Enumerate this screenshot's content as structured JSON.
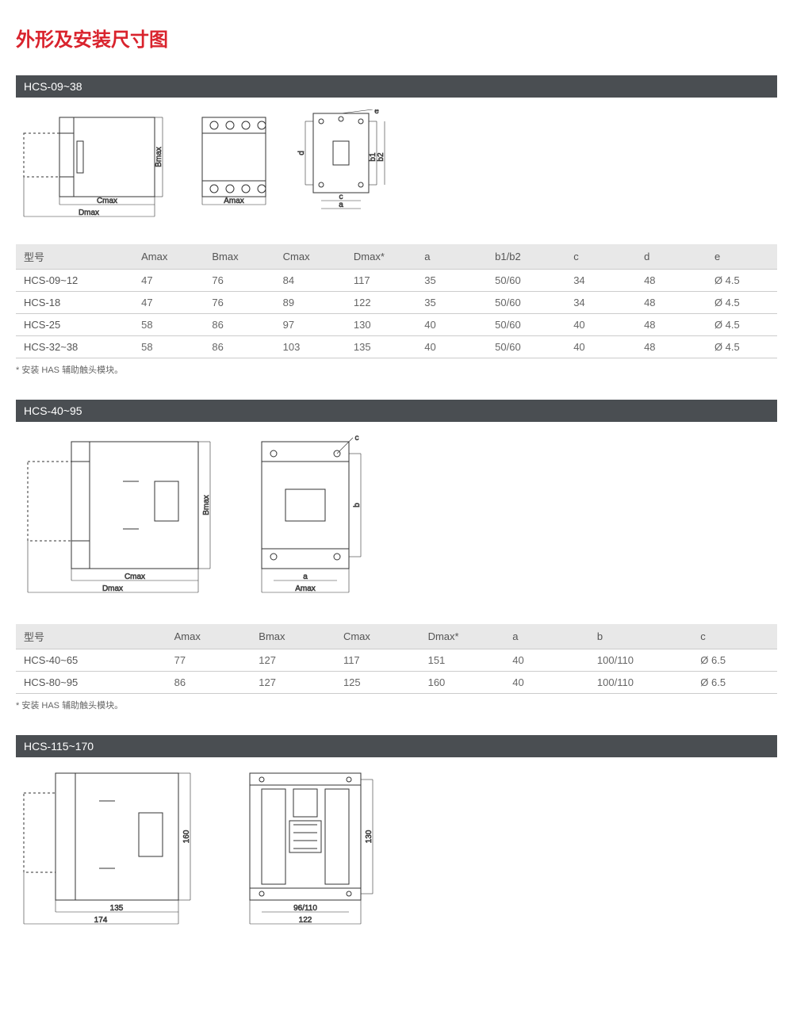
{
  "title": "外形及安装尺寸图",
  "colors": {
    "title": "#d9232d",
    "header_bg": "#4a4e52",
    "header_fg": "#ffffff",
    "thead_bg": "#e8e8e8",
    "text": "#666666",
    "border": "#cccccc",
    "diagram_stroke": "#333333"
  },
  "sections": [
    {
      "header": "HCS-09~38",
      "diagrams": {
        "view1": {
          "labels": {
            "cmax": "Cmax",
            "dmax": "Dmax",
            "bmax": "Bmax"
          }
        },
        "view2": {
          "labels": {
            "amax": "Amax"
          }
        },
        "view3": {
          "labels": {
            "a": "a",
            "c": "c",
            "d": "d",
            "b1": "b1",
            "b2": "b2",
            "e": "e"
          }
        }
      },
      "table": {
        "columns": [
          "型号",
          "Amax",
          "Bmax",
          "Cmax",
          "Dmax*",
          "a",
          "b1/b2",
          "c",
          "d",
          "e"
        ],
        "rows": [
          [
            "HCS-09~12",
            "47",
            "76",
            "84",
            "117",
            "35",
            "50/60",
            "34",
            "48",
            "Ø 4.5"
          ],
          [
            "HCS-18",
            "47",
            "76",
            "89",
            "122",
            "35",
            "50/60",
            "34",
            "48",
            "Ø 4.5"
          ],
          [
            "HCS-25",
            "58",
            "86",
            "97",
            "130",
            "40",
            "50/60",
            "40",
            "48",
            "Ø 4.5"
          ],
          [
            "HCS-32~38",
            "58",
            "86",
            "103",
            "135",
            "40",
            "50/60",
            "40",
            "48",
            "Ø 4.5"
          ]
        ],
        "col_widths": [
          "150px",
          "90px",
          "90px",
          "90px",
          "90px",
          "90px",
          "100px",
          "90px",
          "90px",
          "90px"
        ]
      },
      "footnote": "* 安装 HAS 辅助触头模块。"
    },
    {
      "header": "HCS-40~95",
      "diagrams": {
        "view1": {
          "labels": {
            "cmax": "Cmax",
            "dmax": "Dmax",
            "bmax": "Bmax"
          }
        },
        "view2": {
          "labels": {
            "amax": "Amax",
            "a": "a",
            "b": "b",
            "c": "c"
          }
        }
      },
      "table": {
        "columns": [
          "型号",
          "Amax",
          "Bmax",
          "Cmax",
          "Dmax*",
          "a",
          "b",
          "c"
        ],
        "rows": [
          [
            "HCS-40~65",
            "77",
            "127",
            "117",
            "151",
            "40",
            "100/110",
            "Ø 6.5"
          ],
          [
            "HCS-80~95",
            "86",
            "127",
            "125",
            "160",
            "40",
            "100/110",
            "Ø 6.5"
          ]
        ],
        "col_widths": [
          "160px",
          "90px",
          "90px",
          "90px",
          "90px",
          "90px",
          "110px",
          "90px"
        ]
      },
      "footnote": "* 安装 HAS 辅助触头模块。"
    },
    {
      "header": "HCS-115~170",
      "diagrams": {
        "view1": {
          "labels": {
            "d135": "135",
            "d174": "174",
            "d160": "160"
          }
        },
        "view2": {
          "labels": {
            "d96": "96/110",
            "d122": "122",
            "d130": "130"
          }
        }
      }
    }
  ]
}
